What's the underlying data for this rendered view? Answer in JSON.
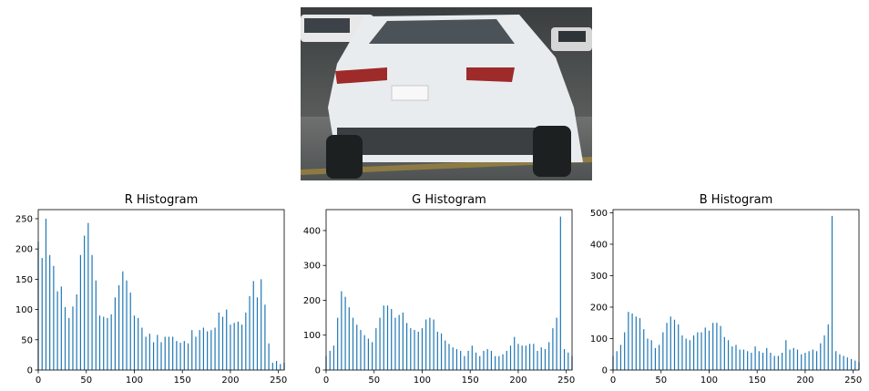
{
  "image": {
    "subject": "car-rear-photo"
  },
  "chart_data": [
    {
      "type": "bar",
      "title": "R Histogram",
      "color": "#1f77b4",
      "xlim": [
        0,
        256
      ],
      "ylim": [
        0,
        265
      ],
      "xticks": [
        0,
        50,
        100,
        150,
        200,
        250
      ],
      "yticks": [
        0,
        50,
        100,
        150,
        200,
        250
      ],
      "x": [
        0,
        4,
        8,
        12,
        16,
        20,
        24,
        28,
        32,
        36,
        40,
        44,
        48,
        52,
        56,
        60,
        64,
        68,
        72,
        76,
        80,
        84,
        88,
        92,
        96,
        100,
        104,
        108,
        112,
        116,
        120,
        124,
        128,
        132,
        136,
        140,
        144,
        148,
        152,
        156,
        160,
        164,
        168,
        172,
        176,
        180,
        184,
        188,
        192,
        196,
        200,
        204,
        208,
        212,
        216,
        220,
        224,
        228,
        232,
        236,
        240,
        244,
        248,
        252,
        256
      ],
      "values": [
        212,
        185,
        250,
        190,
        172,
        130,
        138,
        104,
        86,
        105,
        125,
        190,
        222,
        243,
        190,
        148,
        90,
        88,
        86,
        92,
        120,
        140,
        163,
        148,
        128,
        90,
        86,
        70,
        55,
        60,
        46,
        58,
        46,
        55,
        55,
        55,
        48,
        45,
        48,
        44,
        66,
        55,
        66,
        70,
        64,
        66,
        70,
        95,
        88,
        100,
        75,
        78,
        80,
        75,
        95,
        122,
        147,
        120,
        150,
        108,
        44,
        12,
        15,
        10,
        12
      ]
    },
    {
      "type": "bar",
      "title": "G Histogram",
      "color": "#1f77b4",
      "xlim": [
        0,
        256
      ],
      "ylim": [
        0,
        460
      ],
      "xticks": [
        0,
        50,
        100,
        150,
        200,
        250
      ],
      "yticks": [
        0,
        100,
        200,
        300,
        400
      ],
      "x": [
        0,
        4,
        8,
        12,
        16,
        20,
        24,
        28,
        32,
        36,
        40,
        44,
        48,
        52,
        56,
        60,
        64,
        68,
        72,
        76,
        80,
        84,
        88,
        92,
        96,
        100,
        104,
        108,
        112,
        116,
        120,
        124,
        128,
        132,
        136,
        140,
        144,
        148,
        152,
        156,
        160,
        164,
        168,
        172,
        176,
        180,
        184,
        188,
        192,
        196,
        200,
        204,
        208,
        212,
        216,
        220,
        224,
        228,
        232,
        236,
        240,
        244,
        248,
        252,
        256
      ],
      "values": [
        40,
        55,
        70,
        150,
        226,
        210,
        180,
        150,
        130,
        115,
        100,
        90,
        80,
        120,
        150,
        185,
        185,
        175,
        150,
        158,
        165,
        135,
        120,
        115,
        110,
        120,
        145,
        150,
        145,
        110,
        105,
        85,
        75,
        65,
        60,
        55,
        40,
        55,
        70,
        50,
        40,
        55,
        60,
        55,
        40,
        40,
        45,
        55,
        70,
        95,
        75,
        70,
        70,
        75,
        75,
        55,
        65,
        60,
        80,
        120,
        150,
        440,
        60,
        50,
        40
      ]
    },
    {
      "type": "bar",
      "title": "B Histogram",
      "color": "#1f77b4",
      "xlim": [
        0,
        256
      ],
      "ylim": [
        0,
        510
      ],
      "xticks": [
        0,
        50,
        100,
        150,
        200,
        250
      ],
      "yticks": [
        0,
        100,
        200,
        300,
        400,
        500
      ],
      "x": [
        0,
        4,
        8,
        12,
        16,
        20,
        24,
        28,
        32,
        36,
        40,
        44,
        48,
        52,
        56,
        60,
        64,
        68,
        72,
        76,
        80,
        84,
        88,
        92,
        96,
        100,
        104,
        108,
        112,
        116,
        120,
        124,
        128,
        132,
        136,
        140,
        144,
        148,
        152,
        156,
        160,
        164,
        168,
        172,
        176,
        180,
        184,
        188,
        192,
        196,
        200,
        204,
        208,
        212,
        216,
        220,
        224,
        228,
        232,
        236,
        240,
        244,
        248,
        252,
        256
      ],
      "values": [
        45,
        60,
        80,
        120,
        185,
        180,
        170,
        165,
        130,
        100,
        95,
        70,
        80,
        120,
        150,
        170,
        160,
        145,
        110,
        100,
        95,
        110,
        120,
        120,
        135,
        125,
        150,
        150,
        140,
        105,
        95,
        75,
        80,
        65,
        65,
        60,
        55,
        75,
        60,
        55,
        70,
        55,
        45,
        45,
        55,
        95,
        65,
        70,
        65,
        50,
        55,
        60,
        65,
        60,
        85,
        110,
        145,
        490,
        60,
        50,
        45,
        40,
        35,
        30,
        25
      ]
    }
  ]
}
